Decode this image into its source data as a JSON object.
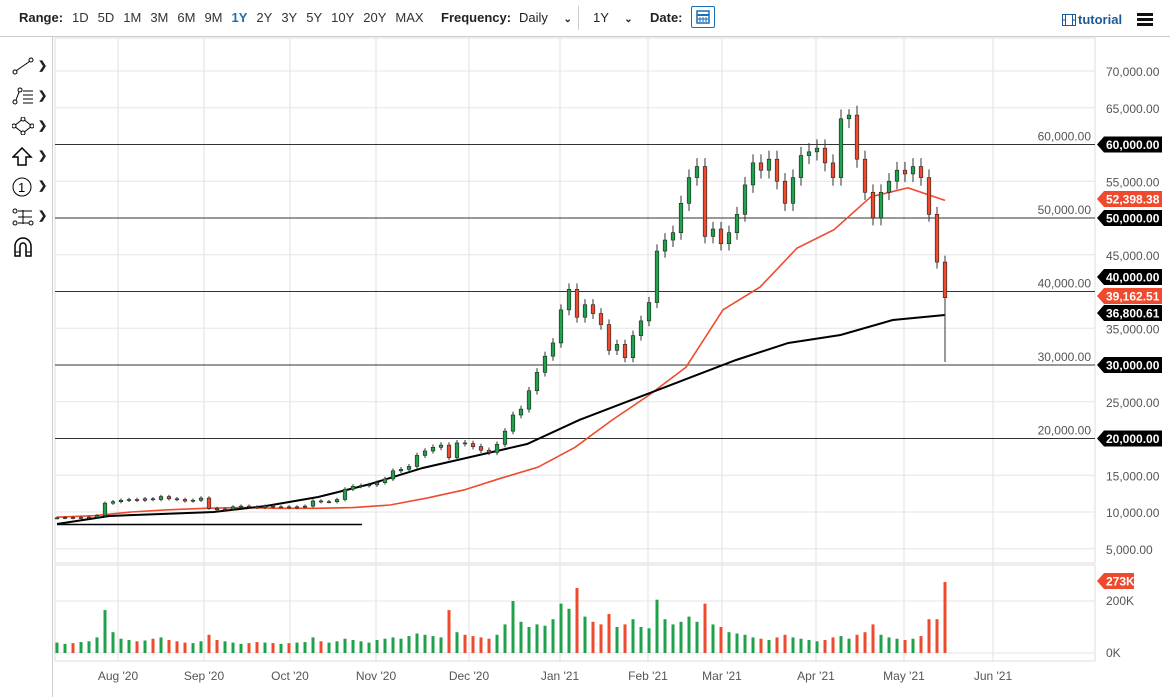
{
  "toolbar": {
    "range_label": "Range:",
    "ranges": [
      "1D",
      "5D",
      "1M",
      "3M",
      "6M",
      "9M",
      "1Y",
      "2Y",
      "3Y",
      "5Y",
      "10Y",
      "20Y",
      "MAX"
    ],
    "active_range": "1Y",
    "frequency_label": "Frequency:",
    "frequency": "Daily",
    "period": "1Y",
    "date_label": "Date:",
    "tutorial": "tutorial"
  },
  "sidebar": {
    "tools": [
      "line-tool-icon",
      "fib-tool-icon",
      "shape-tool-icon",
      "arrow-tool-icon",
      "number-tool-icon",
      "measure-tool-icon",
      "magnet-icon"
    ]
  },
  "colors": {
    "up": "#1fa34a",
    "down": "#f04a2e",
    "ma50": "#f04a2e",
    "ma200": "#000000",
    "accent": "#1a6fb5"
  },
  "chart_data": {
    "type": "candlestick",
    "x_ticks": [
      "Aug '20",
      "Sep '20",
      "Oct '20",
      "Nov '20",
      "Dec '20",
      "Jan '21",
      "Feb '21",
      "Mar '21",
      "Apr '21",
      "May '21",
      "Jun '21"
    ],
    "y_ticks": [
      "70,000.00",
      "65,000.00",
      "60,000.00",
      "55,000.00",
      "50,000.00",
      "45,000.00",
      "40,000.00",
      "35,000.00",
      "30,000.00",
      "25,000.00",
      "20,000.00",
      "15,000.00",
      "10,000.00",
      "5,000.00"
    ],
    "ylim": [
      5000,
      70000
    ],
    "horizontal_levels": [
      60000,
      50000,
      40000,
      30000,
      20000
    ],
    "level_labels": [
      "60,000.00",
      "50,000.00",
      "40,000.00",
      "30,000.00",
      "20,000.00"
    ],
    "last_price_label": "39,162.51",
    "ma50_label": "52,398.38",
    "ma200_label": "36,800.61",
    "closes": [
      9200,
      9250,
      9200,
      9250,
      9300,
      9500,
      11200,
      11400,
      11600,
      11700,
      11600,
      11800,
      11700,
      12100,
      11800,
      11700,
      11500,
      11600,
      11900,
      10500,
      10300,
      10400,
      10700,
      10800,
      10700,
      10600,
      10800,
      10700,
      10700,
      10600,
      10700,
      10800,
      11500,
      11400,
      11400,
      11700,
      13100,
      13500,
      13600,
      13700,
      14000,
      14500,
      15600,
      15800,
      16200,
      17700,
      18300,
      18800,
      19100,
      17400,
      19400,
      19300,
      18900,
      18400,
      18100,
      19200,
      21000,
      23200,
      24000,
      26500,
      29000,
      31200,
      33000,
      37500,
      40300,
      36500,
      38200,
      37000,
      35500,
      32000,
      32800,
      31000,
      34000,
      36000,
      38500,
      45500,
      47000,
      48000,
      52000,
      55500,
      57000,
      47500,
      48500,
      46500,
      48000,
      50500,
      54500,
      57500,
      56500,
      58000,
      55000,
      52000,
      55500,
      58500,
      59000,
      59500,
      57500,
      55500,
      63500,
      64000,
      58000,
      53500,
      50000,
      53500,
      55000,
      56500,
      56000,
      57000,
      55500,
      50500,
      44000,
      39162.51
    ],
    "last_low": 30400,
    "peak_high": 64800,
    "ma50": [
      9300,
      9500,
      10000,
      10300,
      10500,
      10600,
      10500,
      10500,
      10600,
      10950,
      11900,
      13000,
      14600,
      16100,
      18800,
      22500,
      25900,
      29700,
      37500,
      40600,
      45900,
      48400,
      52900,
      54100,
      52398.38
    ],
    "ma200": [
      8370,
      9460,
      9730,
      10000,
      10820,
      12040,
      13810,
      15990,
      17620,
      19250,
      22520,
      25240,
      27960,
      30680,
      33000,
      34080,
      36120,
      36800.61
    ],
    "trendline": [
      8300,
      8300
    ],
    "volume": {
      "y_ticks": [
        "200K",
        "0K"
      ],
      "last_label": "273K",
      "values": [
        40,
        35,
        38,
        42,
        45,
        60,
        165,
        80,
        55,
        50,
        45,
        48,
        55,
        60,
        50,
        45,
        40,
        38,
        45,
        70,
        50,
        45,
        40,
        35,
        38,
        42,
        40,
        38,
        35,
        38,
        40,
        42,
        60,
        45,
        40,
        45,
        55,
        50,
        45,
        40,
        50,
        55,
        60,
        55,
        65,
        75,
        70,
        65,
        60,
        165,
        80,
        70,
        65,
        60,
        55,
        70,
        110,
        200,
        120,
        100,
        110,
        105,
        130,
        190,
        170,
        250,
        140,
        120,
        110,
        150,
        100,
        110,
        130,
        100,
        95,
        205,
        130,
        110,
        120,
        140,
        120,
        190,
        110,
        100,
        80,
        75,
        70,
        60,
        55,
        50,
        60,
        70,
        60,
        55,
        50,
        45,
        50,
        60,
        65,
        55,
        70,
        80,
        110,
        70,
        60,
        55,
        50,
        55,
        65,
        130,
        130,
        273
      ]
    }
  }
}
